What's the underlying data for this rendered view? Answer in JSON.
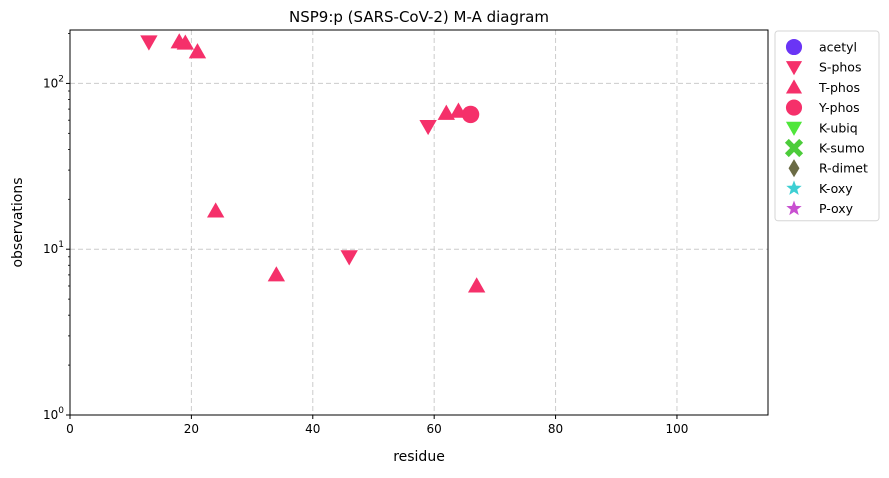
{
  "chart_data": {
    "type": "scatter",
    "title": "NSP9:p (SARS-CoV-2) M-A diagram",
    "xlabel": "residue",
    "ylabel": "observations",
    "xlim": [
      0,
      115
    ],
    "ylim": [
      1,
      210
    ],
    "yscale": "log",
    "grid": true,
    "legend_position": "outside-right",
    "x_ticks": [
      0,
      20,
      40,
      60,
      80,
      100
    ],
    "x_tick_labels": [
      "0",
      "20",
      "40",
      "60",
      "80",
      "100"
    ],
    "y_ticks": [
      1,
      10,
      100
    ],
    "y_tick_labels": [
      {
        "base": "10",
        "exp": "0"
      },
      {
        "base": "10",
        "exp": "1"
      },
      {
        "base": "10",
        "exp": "2"
      }
    ],
    "series": [
      {
        "name": "acetyl",
        "marker": "circle",
        "color": "#6a35f5",
        "points": []
      },
      {
        "name": "S-phos",
        "marker": "triangle-down",
        "color": "#f5306a",
        "points": [
          {
            "x": 13,
            "y": 178
          },
          {
            "x": 59,
            "y": 55
          },
          {
            "x": 46,
            "y": 9
          }
        ]
      },
      {
        "name": "T-phos",
        "marker": "triangle-up",
        "color": "#f5306a",
        "points": [
          {
            "x": 18,
            "y": 178
          },
          {
            "x": 19,
            "y": 175
          },
          {
            "x": 21,
            "y": 155
          },
          {
            "x": 62,
            "y": 66
          },
          {
            "x": 64,
            "y": 68
          },
          {
            "x": 24,
            "y": 17
          },
          {
            "x": 34,
            "y": 7
          },
          {
            "x": 67,
            "y": 6
          }
        ]
      },
      {
        "name": "Y-phos",
        "marker": "circle",
        "color": "#f5306a",
        "points": [
          {
            "x": 66,
            "y": 65
          }
        ]
      },
      {
        "name": "K-ubiq",
        "marker": "triangle-down",
        "color": "#4fe63a",
        "points": []
      },
      {
        "name": "K-sumo",
        "marker": "x-thick",
        "color": "#4ccc3a",
        "points": []
      },
      {
        "name": "R-dimet",
        "marker": "diamond-thin",
        "color": "#6b6b45",
        "points": []
      },
      {
        "name": "K-oxy",
        "marker": "star",
        "color": "#3dcfd3",
        "points": []
      },
      {
        "name": "P-oxy",
        "marker": "star",
        "color": "#c84fd0",
        "points": []
      }
    ]
  }
}
